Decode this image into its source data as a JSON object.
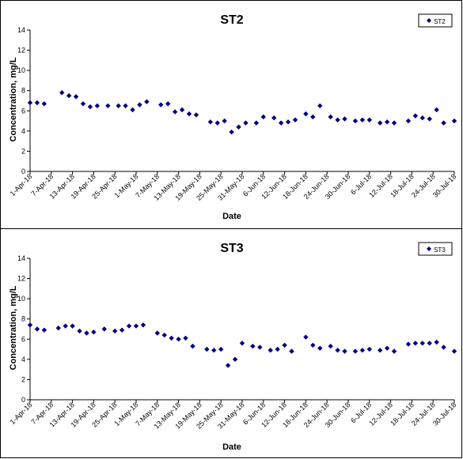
{
  "colors": {
    "marker": "#000080",
    "axis": "#000000",
    "background": "#ffffff"
  },
  "chart_data": [
    {
      "type": "scatter",
      "title": "ST2",
      "xlabel": "Date",
      "ylabel": "Concentration, mg/L",
      "legend": {
        "position": "top-right",
        "entries": [
          "ST2"
        ]
      },
      "grid": false,
      "xlim": [
        "2018-04-01",
        "2018-07-30"
      ],
      "ylim": [
        0,
        14
      ],
      "yticks": [
        "0",
        "2",
        "4",
        "6",
        "8",
        "10",
        "12",
        "14"
      ],
      "xticks": [
        "1-Apr-18",
        "7-Apr-18",
        "13-Apr-18",
        "19-Apr-18",
        "25-Apr-18",
        "1-May-18",
        "7-May-18",
        "13-May-18",
        "19-May-18",
        "25-May-18",
        "31-May-18",
        "6-Jun-18",
        "12-Jun-18",
        "18-Jun-18",
        "24-Jun-18",
        "30-Jun-18",
        "6-Jul-18",
        "12-Jul-18",
        "18-Jul-18",
        "24-Jul-18",
        "30-Jul-18"
      ],
      "series": [
        {
          "name": "ST2",
          "marker": "diamond",
          "x": [
            "2018-04-01",
            "2018-04-03",
            "2018-04-05",
            "2018-04-10",
            "2018-04-12",
            "2018-04-14",
            "2018-04-16",
            "2018-04-18",
            "2018-04-20",
            "2018-04-23",
            "2018-04-26",
            "2018-04-28",
            "2018-04-30",
            "2018-05-02",
            "2018-05-04",
            "2018-05-08",
            "2018-05-10",
            "2018-05-12",
            "2018-05-14",
            "2018-05-16",
            "2018-05-18",
            "2018-05-22",
            "2018-05-24",
            "2018-05-26",
            "2018-05-28",
            "2018-05-30",
            "2018-06-01",
            "2018-06-04",
            "2018-06-06",
            "2018-06-09",
            "2018-06-11",
            "2018-06-13",
            "2018-06-15",
            "2018-06-18",
            "2018-06-20",
            "2018-06-22",
            "2018-06-25",
            "2018-06-27",
            "2018-06-29",
            "2018-07-02",
            "2018-07-04",
            "2018-07-06",
            "2018-07-09",
            "2018-07-11",
            "2018-07-13",
            "2018-07-17",
            "2018-07-19",
            "2018-07-21",
            "2018-07-23",
            "2018-07-25",
            "2018-07-27",
            "2018-07-30"
          ],
          "y": [
            6.8,
            6.8,
            6.7,
            7.8,
            7.5,
            7.4,
            6.7,
            6.4,
            6.5,
            6.5,
            6.5,
            6.5,
            6.1,
            6.6,
            6.9,
            6.6,
            6.7,
            5.9,
            6.1,
            5.7,
            5.6,
            4.9,
            4.8,
            5.0,
            3.9,
            4.4,
            4.8,
            4.8,
            5.4,
            5.3,
            4.8,
            4.9,
            5.1,
            5.7,
            5.4,
            6.5,
            5.4,
            5.1,
            5.2,
            5.0,
            5.1,
            5.1,
            4.8,
            4.9,
            4.8,
            5.0,
            5.5,
            5.3,
            5.2,
            6.1,
            4.8,
            5.0
          ]
        }
      ]
    },
    {
      "type": "scatter",
      "title": "ST3",
      "xlabel": "Date",
      "ylabel": "Concentration, mg/L",
      "legend": {
        "position": "top-right",
        "entries": [
          "ST3"
        ]
      },
      "grid": false,
      "xlim": [
        "2018-04-01",
        "2018-07-30"
      ],
      "ylim": [
        0,
        14
      ],
      "yticks": [
        "0",
        "2",
        "4",
        "6",
        "8",
        "10",
        "12",
        "14"
      ],
      "xticks": [
        "1-Apr-18",
        "7-Apr-18",
        "13-Apr-18",
        "19-Apr-18",
        "25-Apr-18",
        "1-May-18",
        "7-May-18",
        "13-May-18",
        "19-May-18",
        "25-May-18",
        "31-May-18",
        "6-Jun-18",
        "12-Jun-18",
        "18-Jun-18",
        "24-Jun-18",
        "30-Jun-18",
        "6-Jul-18",
        "12-Jul-18",
        "18-Jul-18",
        "24-Jul-18",
        "30-Jul-18"
      ],
      "series": [
        {
          "name": "ST3",
          "marker": "diamond",
          "x": [
            "2018-04-01",
            "2018-04-03",
            "2018-04-05",
            "2018-04-09",
            "2018-04-11",
            "2018-04-13",
            "2018-04-15",
            "2018-04-17",
            "2018-04-19",
            "2018-04-22",
            "2018-04-25",
            "2018-04-27",
            "2018-04-29",
            "2018-05-01",
            "2018-05-03",
            "2018-05-07",
            "2018-05-09",
            "2018-05-11",
            "2018-05-13",
            "2018-05-15",
            "2018-05-17",
            "2018-05-21",
            "2018-05-23",
            "2018-05-25",
            "2018-05-27",
            "2018-05-29",
            "2018-05-31",
            "2018-06-03",
            "2018-06-05",
            "2018-06-08",
            "2018-06-10",
            "2018-06-12",
            "2018-06-14",
            "2018-06-18",
            "2018-06-20",
            "2018-06-22",
            "2018-06-25",
            "2018-06-27",
            "2018-06-29",
            "2018-07-02",
            "2018-07-04",
            "2018-07-06",
            "2018-07-09",
            "2018-07-11",
            "2018-07-13",
            "2018-07-17",
            "2018-07-19",
            "2018-07-21",
            "2018-07-23",
            "2018-07-25",
            "2018-07-27",
            "2018-07-30"
          ],
          "y": [
            7.4,
            7.0,
            6.9,
            7.1,
            7.3,
            7.3,
            6.8,
            6.6,
            6.7,
            7.0,
            6.8,
            6.9,
            7.3,
            7.3,
            7.4,
            6.6,
            6.4,
            6.1,
            6.0,
            6.1,
            5.3,
            5.0,
            4.9,
            5.0,
            3.4,
            4.0,
            5.6,
            5.3,
            5.2,
            4.9,
            5.0,
            5.4,
            4.8,
            6.2,
            5.4,
            5.1,
            5.3,
            4.9,
            4.8,
            4.8,
            4.9,
            5.0,
            4.9,
            5.1,
            4.8,
            5.5,
            5.6,
            5.6,
            5.6,
            5.7,
            5.2,
            4.8
          ]
        }
      ]
    }
  ]
}
